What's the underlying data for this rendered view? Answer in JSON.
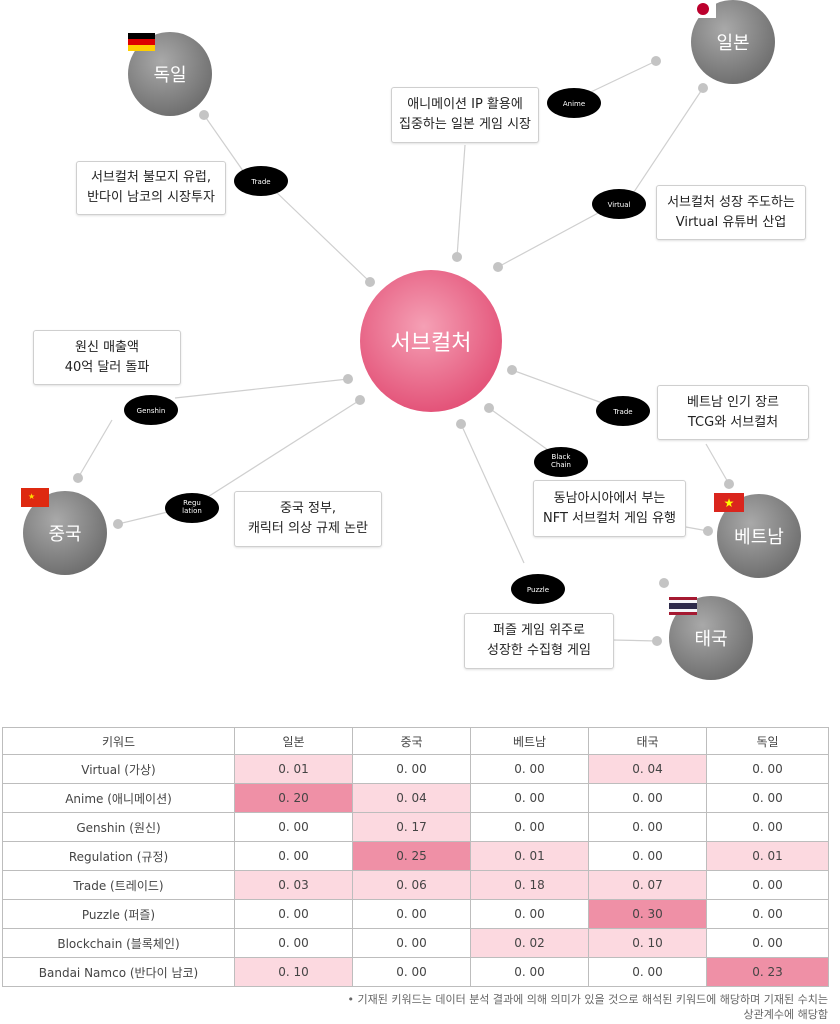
{
  "center": {
    "label": "서브컬처",
    "color": "#e8567b"
  },
  "countries": {
    "japan": {
      "label": "일본"
    },
    "germany": {
      "label": "독일"
    },
    "china": {
      "label": "중국"
    },
    "vietnam": {
      "label": "베트남"
    },
    "thailand": {
      "label": "태국"
    }
  },
  "keywords": {
    "anime": "Anime",
    "trade_germany": "Trade",
    "virtual": "Virtual",
    "genshin": "Genshin",
    "trade_vietnam": "Trade",
    "blockchain": "Black\nChain",
    "regulation": "Regu\nlation",
    "puzzle": "Puzzle"
  },
  "notes": {
    "japan_anime": "애니메이션 IP 활용에\n집중하는 일본 게임 시장",
    "germany_trade": "서브컬처 불모지 유럽,\n반다이 남코의 시장투자",
    "virtual": "서브컬처 성장 주도하는\nVirtual 유튜버 산업",
    "genshin": "원신 매출액\n40억 달러 돌파",
    "vietnam_trade": "베트남 인기 장르\nTCG와 서브컬처",
    "blockchain": "동남아시아에서 부는\nNFT 서브컬처 게임 유행",
    "regulation": "중국 정부,\n캐릭터 의상 규제 논란",
    "puzzle": "퍼즐 게임 위주로\n성장한 수집형 게임"
  },
  "table": {
    "headers": [
      "키워드",
      "일본",
      "중국",
      "베트남",
      "태국",
      "독일"
    ],
    "rows": [
      {
        "keyword": "Virtual (가상)",
        "values": [
          "0. 01",
          "0. 00",
          "0. 00",
          "0. 04",
          "0. 00"
        ],
        "level": [
          "vlow",
          "v0",
          "v0",
          "vlow",
          "v0"
        ]
      },
      {
        "keyword": "Anime (애니메이션)",
        "values": [
          "0. 20",
          "0. 04",
          "0. 00",
          "0. 00",
          "0. 00"
        ],
        "level": [
          "vhigh",
          "vlow",
          "v0",
          "v0",
          "v0"
        ]
      },
      {
        "keyword": "Genshin (원신)",
        "values": [
          "0. 00",
          "0. 17",
          "0. 00",
          "0. 00",
          "0. 00"
        ],
        "level": [
          "v0",
          "vlow",
          "v0",
          "v0",
          "v0"
        ]
      },
      {
        "keyword": "Regulation (규정)",
        "values": [
          "0. 00",
          "0. 25",
          "0. 01",
          "0. 00",
          "0. 01"
        ],
        "level": [
          "v0",
          "vhigh",
          "vlow",
          "v0",
          "vlow"
        ]
      },
      {
        "keyword": "Trade (트레이드)",
        "values": [
          "0. 03",
          "0. 06",
          "0. 18",
          "0. 07",
          "0. 00"
        ],
        "level": [
          "vlow",
          "vlow",
          "vlow",
          "vlow",
          "v0"
        ]
      },
      {
        "keyword": "Puzzle (퍼즐)",
        "values": [
          "0. 00",
          "0. 00",
          "0. 00",
          "0. 30",
          "0. 00"
        ],
        "level": [
          "v0",
          "v0",
          "v0",
          "vhigh",
          "v0"
        ]
      },
      {
        "keyword": "Blockchain (블록체인)",
        "values": [
          "0. 00",
          "0. 00",
          "0. 02",
          "0. 10",
          "0. 00"
        ],
        "level": [
          "v0",
          "v0",
          "vlow",
          "vlow",
          "v0"
        ]
      },
      {
        "keyword": "Bandai Namco (반다이 남코)",
        "values": [
          "0. 10",
          "0. 00",
          "0. 00",
          "0. 00",
          "0. 23"
        ],
        "level": [
          "vlow",
          "v0",
          "v0",
          "v0",
          "vhigh"
        ]
      }
    ]
  },
  "footnote": "• 기재된 키워드는 데이터 분석 결과에 의해 의미가 있을 것으로 해석된 키워드에 해당하며 기재된 수치는\n상관계수에 해당함"
}
